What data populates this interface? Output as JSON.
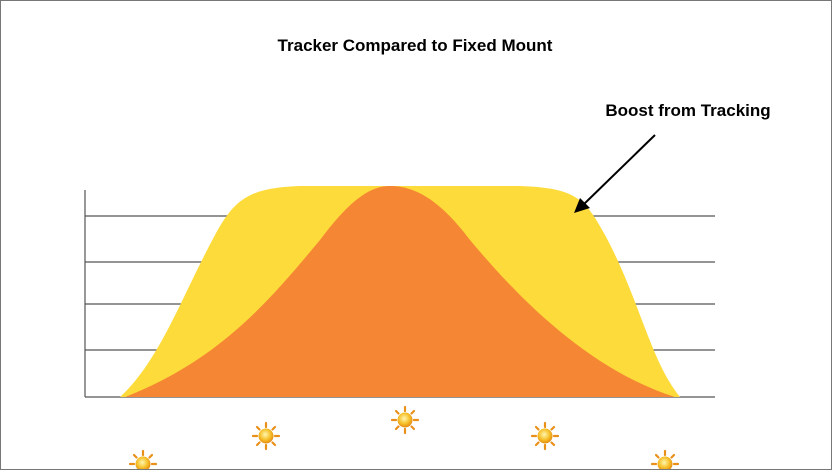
{
  "header": {
    "title": "Tracker Compared to Fixed Mount"
  },
  "annotation": {
    "label": "Boost from Tracking"
  }
}
